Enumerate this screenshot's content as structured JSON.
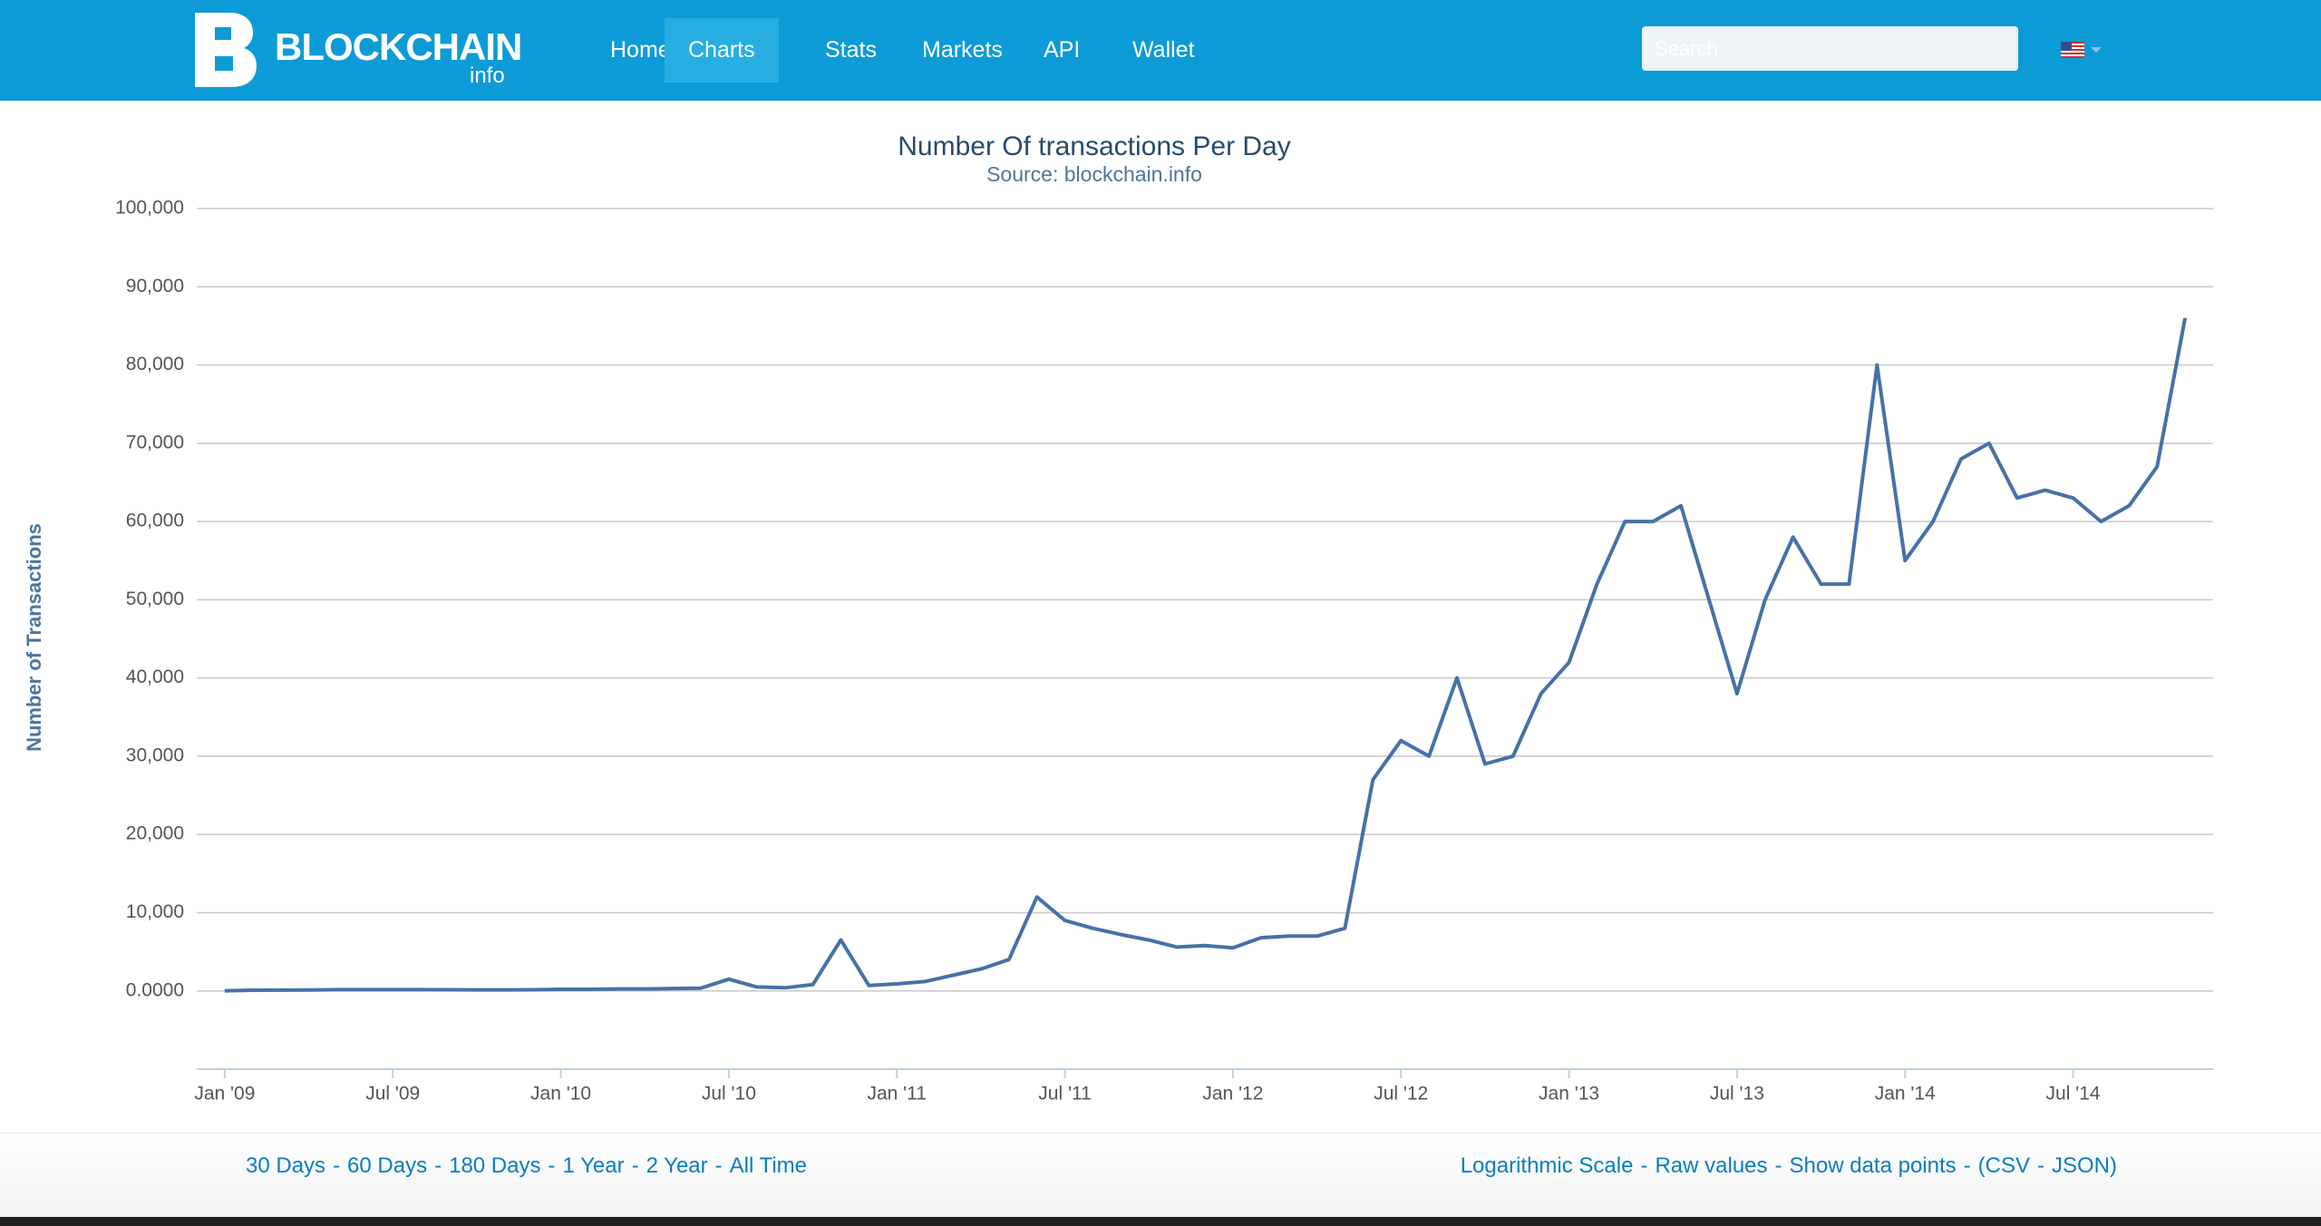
{
  "nav": {
    "logo": "BLOCKCHAIN",
    "logo_sub": "info",
    "items": [
      "Home",
      "Charts",
      "Stats",
      "Markets",
      "API",
      "Wallet"
    ],
    "active": 1,
    "search_placeholder": "Search"
  },
  "chart_data": {
    "type": "line",
    "title": "Number Of transactions Per Day",
    "subtitle": "Source: blockchain.info",
    "y_label": "Number of Transactions",
    "x": [
      "2009-01",
      "2009-02",
      "2009-03",
      "2009-04",
      "2009-05",
      "2009-06",
      "2009-07",
      "2009-08",
      "2009-09",
      "2009-10",
      "2009-11",
      "2009-12",
      "2010-01",
      "2010-02",
      "2010-03",
      "2010-04",
      "2010-05",
      "2010-06",
      "2010-07",
      "2010-08",
      "2010-09",
      "2010-10",
      "2010-11",
      "2010-12",
      "2011-01",
      "2011-02",
      "2011-03",
      "2011-04",
      "2011-05",
      "2011-06",
      "2011-07",
      "2011-08",
      "2011-09",
      "2011-10",
      "2011-11",
      "2011-12",
      "2012-01",
      "2012-02",
      "2012-03",
      "2012-04",
      "2012-05",
      "2012-06",
      "2012-07",
      "2012-08",
      "2012-09",
      "2012-10",
      "2012-11",
      "2012-12",
      "2013-01",
      "2013-02",
      "2013-03",
      "2013-04",
      "2013-05",
      "2013-06",
      "2013-07",
      "2013-08",
      "2013-09",
      "2013-10",
      "2013-11",
      "2013-12",
      "2014-01",
      "2014-02",
      "2014-03",
      "2014-04",
      "2014-05",
      "2014-06",
      "2014-07",
      "2014-08",
      "2014-09",
      "2014-10",
      "2014-11"
    ],
    "series": [
      {
        "name": "Number of Transactions",
        "color": "#4572a7",
        "values": [
          20,
          80,
          100,
          120,
          150,
          150,
          150,
          150,
          140,
          130,
          130,
          140,
          200,
          200,
          250,
          250,
          300,
          350,
          1500,
          500,
          400,
          800,
          6500,
          700,
          900,
          1200,
          2000,
          2800,
          4000,
          12000,
          9000,
          8000,
          7200,
          6500,
          5600,
          5800,
          5500,
          6800,
          7000,
          7000,
          8000,
          27000,
          32000,
          30000,
          40000,
          29000,
          30000,
          38000,
          42000,
          52000,
          60000,
          60000,
          62000,
          50000,
          38000,
          50000,
          58000,
          52000,
          52000,
          80000,
          55000,
          60000,
          68000,
          70000,
          63000,
          64000,
          63000,
          60000,
          62000,
          67000,
          86000
        ]
      }
    ],
    "xlim": [
      "2008-12",
      "2014-12"
    ],
    "xticks": [
      {
        "value": "2009-01",
        "label": "Jan '09"
      },
      {
        "value": "2009-07",
        "label": "Jul '09"
      },
      {
        "value": "2010-01",
        "label": "Jan '10"
      },
      {
        "value": "2010-07",
        "label": "Jul '10"
      },
      {
        "value": "2011-01",
        "label": "Jan '11"
      },
      {
        "value": "2011-07",
        "label": "Jul '11"
      },
      {
        "value": "2012-01",
        "label": "Jan '12"
      },
      {
        "value": "2012-07",
        "label": "Jul '12"
      },
      {
        "value": "2013-01",
        "label": "Jan '13"
      },
      {
        "value": "2013-07",
        "label": "Jul '13"
      },
      {
        "value": "2014-01",
        "label": "Jan '14"
      },
      {
        "value": "2014-07",
        "label": "Jul '14"
      }
    ],
    "ylim": [
      -10000,
      100000
    ],
    "yticks": [
      {
        "value": 0,
        "label": "0.0000"
      },
      {
        "value": 10000,
        "label": "10,000"
      },
      {
        "value": 20000,
        "label": "20,000"
      },
      {
        "value": 30000,
        "label": "30,000"
      },
      {
        "value": 40000,
        "label": "40,000"
      },
      {
        "value": 50000,
        "label": "50,000"
      },
      {
        "value": 60000,
        "label": "60,000"
      },
      {
        "value": 70000,
        "label": "70,000"
      },
      {
        "value": 80000,
        "label": "80,000"
      },
      {
        "value": 90000,
        "label": "90,000"
      },
      {
        "value": 100000,
        "label": "100,000"
      }
    ],
    "grid": true
  },
  "footer": {
    "separator": "-",
    "left_links": [
      "30 Days",
      "60 Days",
      "180 Days",
      "1 Year",
      "2 Year",
      "All Time"
    ],
    "right_links": [
      "Logarithmic Scale",
      "Raw values",
      "Show data points",
      "(CSV",
      "JSON)"
    ]
  }
}
